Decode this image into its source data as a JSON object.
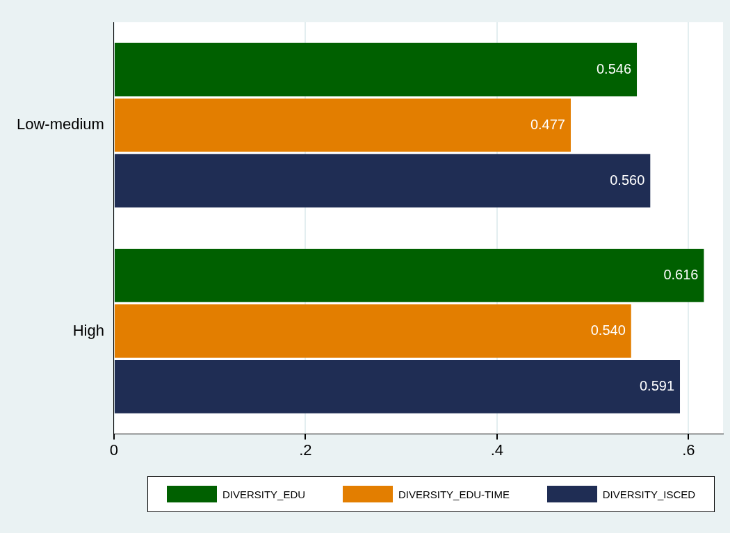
{
  "chart_data": {
    "type": "bar",
    "orientation": "horizontal",
    "categories": [
      "Low-medium",
      "High"
    ],
    "series": [
      {
        "name": "DIVERSITY_EDU",
        "color": "#006000",
        "values": [
          0.546,
          0.616
        ],
        "value_labels": [
          "0.546",
          "0.616"
        ]
      },
      {
        "name": "DIVERSITY_EDU-TIME",
        "color": "#e37e00",
        "values": [
          0.477,
          0.54
        ],
        "value_labels": [
          "0.477",
          "0.540"
        ]
      },
      {
        "name": "DIVERSITY_ISCED",
        "color": "#1f2d54",
        "values": [
          0.56,
          0.591
        ],
        "value_labels": [
          "0.560",
          "0.591"
        ]
      }
    ],
    "xlim": [
      0,
      0.636
    ],
    "xticks": [
      0,
      {
        "value": 0.2,
        "label": ".2"
      },
      {
        "value": 0.4,
        "label": ".4"
      },
      {
        "value": 0.6,
        "label": ".6"
      }
    ],
    "grid": "x",
    "legend": "bottom"
  }
}
